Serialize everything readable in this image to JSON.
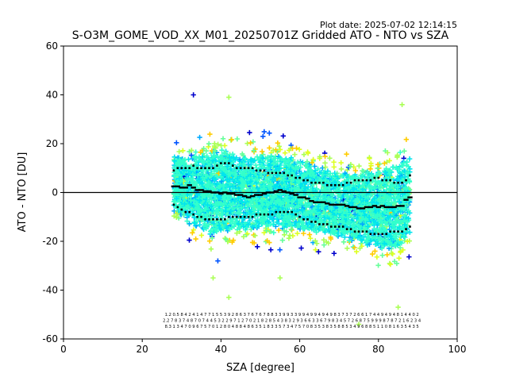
{
  "plot_date": "Plot date: 2025-07-02 12:14:15",
  "chart_data": {
    "type": "scatter",
    "title": "S-O3M_GOME_VOD_XX_M01_20250701Z Gridded ATO - NTO vs SZA",
    "xlabel": "SZA [degree]",
    "ylabel": "ATO - NTO [DU]",
    "xlim": [
      0,
      100
    ],
    "ylim": [
      -60,
      60
    ],
    "xticks": [
      0,
      20,
      40,
      60,
      80,
      100
    ],
    "yticks": [
      -60,
      -40,
      -20,
      0,
      20,
      40,
      60
    ],
    "grid": false,
    "zero_line": 0,
    "colormap": [
      "#0000cc",
      "#0055ff",
      "#00aaff",
      "#00e5ee",
      "#33ffcc",
      "#66ff99",
      "#aaff55",
      "#ddff22",
      "#ffcc00"
    ],
    "scatter_extent": {
      "sza_range": [
        28,
        88
      ],
      "upper_envelope": [
        [
          29,
          22
        ],
        [
          32,
          25
        ],
        [
          40,
          30
        ],
        [
          46,
          27
        ],
        [
          55,
          26
        ],
        [
          62,
          22
        ],
        [
          70,
          17
        ],
        [
          75,
          18
        ],
        [
          80,
          20
        ],
        [
          85,
          25
        ],
        [
          88,
          27
        ]
      ],
      "lower_envelope": [
        [
          29,
          -15
        ],
        [
          32,
          -23
        ],
        [
          38,
          -30
        ],
        [
          44,
          -27
        ],
        [
          52,
          -25
        ],
        [
          60,
          -25
        ],
        [
          68,
          -27
        ],
        [
          75,
          -30
        ],
        [
          80,
          -34
        ],
        [
          85,
          -36
        ],
        [
          88,
          -30
        ]
      ],
      "outliers": [
        [
          33,
          40
        ],
        [
          42,
          39
        ],
        [
          42,
          -43
        ],
        [
          85,
          -47
        ],
        [
          86,
          36
        ],
        [
          75,
          -54
        ],
        [
          55,
          -35
        ],
        [
          38,
          -35
        ]
      ]
    },
    "series": [
      {
        "x": [
          28,
          29,
          30,
          31,
          32,
          33,
          34,
          35,
          36,
          37,
          38,
          39,
          40,
          41,
          42,
          43,
          44,
          45,
          46,
          47,
          48,
          49,
          50,
          51,
          52,
          53,
          54,
          55,
          56,
          57,
          58,
          59,
          60,
          61,
          62,
          63,
          64,
          65,
          66,
          67,
          68,
          69,
          70,
          71,
          72,
          73,
          74,
          75,
          76,
          77,
          78,
          79,
          80,
          81,
          82,
          83,
          84,
          85,
          86,
          87,
          88
        ],
        "y": [
          2.5,
          2.5,
          2,
          2,
          3,
          2,
          1,
          1,
          0.5,
          0.5,
          0,
          0,
          -0.5,
          0,
          -0.5,
          -0.5,
          -1,
          -1,
          -1.5,
          -2,
          -1.5,
          -1,
          -1,
          -0.5,
          0,
          0,
          0.5,
          1,
          0.5,
          0,
          -0.5,
          -1,
          -2,
          -2,
          -2.5,
          -3.5,
          -4,
          -4,
          -4,
          -4.5,
          -5,
          -5,
          -5,
          -5,
          -5.5,
          -6,
          -6,
          -6.5,
          -6.5,
          -6,
          -6,
          -5.5,
          -6,
          -5.5,
          -6,
          -6,
          -6,
          -5.5,
          -5.5,
          -3,
          -2
        ]
      },
      {
        "x": [
          28,
          29,
          30,
          31,
          32,
          33,
          34,
          35,
          36,
          37,
          38,
          39,
          40,
          41,
          42,
          43,
          44,
          45,
          46,
          47,
          48,
          49,
          50,
          51,
          52,
          53,
          54,
          55,
          56,
          57,
          58,
          59,
          60,
          61,
          62,
          63,
          64,
          65,
          66,
          67,
          68,
          69,
          70,
          71,
          72,
          73,
          74,
          75,
          76,
          77,
          78,
          79,
          80,
          81,
          82,
          83,
          84,
          85,
          86,
          87,
          88
        ],
        "y": [
          9,
          10,
          10,
          10,
          10,
          11,
          10,
          10,
          10,
          10,
          10,
          11,
          12,
          12,
          12,
          11,
          10,
          10,
          10,
          10,
          10,
          9,
          9,
          9,
          8,
          8,
          8,
          8,
          8,
          7,
          7,
          6,
          6,
          5,
          5,
          4,
          4,
          4,
          4,
          3,
          3,
          3,
          3,
          3,
          4,
          4,
          5,
          5,
          5,
          5,
          5,
          6,
          6,
          5,
          5,
          5,
          4,
          4,
          4,
          5,
          7
        ]
      },
      {
        "x": [
          28,
          29,
          30,
          31,
          32,
          33,
          34,
          35,
          36,
          37,
          38,
          39,
          40,
          41,
          42,
          43,
          44,
          45,
          46,
          47,
          48,
          49,
          50,
          51,
          52,
          53,
          54,
          55,
          56,
          57,
          58,
          59,
          60,
          61,
          62,
          63,
          64,
          65,
          66,
          67,
          68,
          69,
          70,
          71,
          72,
          73,
          74,
          75,
          76,
          77,
          78,
          79,
          80,
          81,
          82,
          83,
          84,
          85,
          86,
          87,
          88
        ],
        "y": [
          -5,
          -6,
          -7,
          -8,
          -8,
          -9,
          -10,
          -10,
          -11,
          -11,
          -11,
          -11,
          -11,
          -11,
          -10,
          -10,
          -10,
          -10,
          -10,
          -10,
          -10,
          -9,
          -9,
          -9,
          -9,
          -9,
          -8,
          -8,
          -8,
          -8,
          -8,
          -9,
          -10,
          -11,
          -11,
          -12,
          -12,
          -13,
          -13,
          -13,
          -14,
          -14,
          -14,
          -14,
          -15,
          -15,
          -16,
          -16,
          -16,
          -16,
          -17,
          -17,
          -17,
          -17,
          -17,
          -16,
          -16,
          -16,
          -16,
          -15,
          -14
        ]
      }
    ],
    "count_annotation_rows": [
      "1.2 0.5 8 4 2 4 1 4 7 7 1 5 5 3 9 2 8 6 3 7 6 7 6 7 8 8 3 3 9 9 3 3 9 9 4 9 9 4 9 4 9 8 3 7 3 7 2 6 6 1 7 4 4 9 4 9 4 8 1 4 4 0 2",
      "2.2 7 8 3 7 4 8 7 0 7 4 4 5 3 2 2 9 7 1 2 7 0 2 1 8 2 8 5 4 3 8 3 2 9 3 6 6 3 3 6 7 9 8 3 4 5 7 2 6 8 7 5 9 9 9 8 7 8 7 2 1 6 2 3 4",
      "8.3 1 3 4 7 0 9 6 7 5 7 0 1 2 8 0 4 8 8 4 8 6 3 5 1 8 3 3 5 7 3 4 7 5 7 0 8 3 5 3 8 3 5 8 8 5 3 4 9 6 8 8 5 1 1 0 8 1 6 3 5 4 3 5"
    ]
  }
}
